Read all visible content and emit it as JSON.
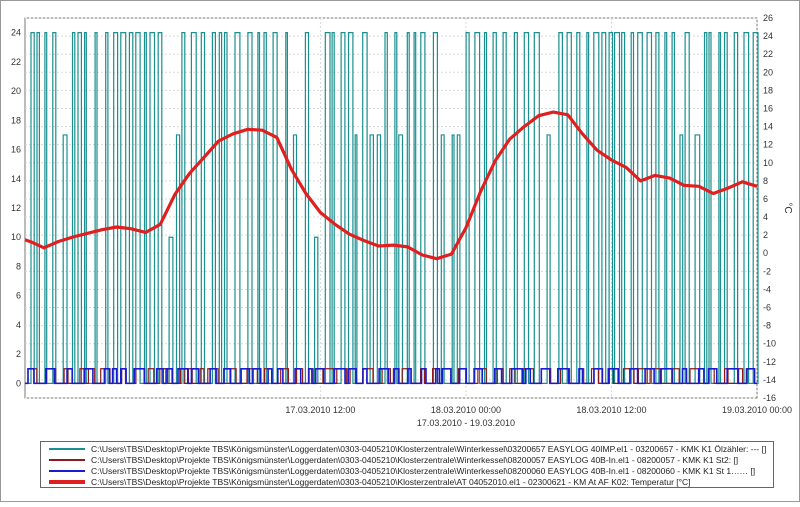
{
  "chart_data": {
    "type": "line",
    "title": "",
    "x_range": [
      "17.03.2010 00:00",
      "19.03.2010 00:00"
    ],
    "x_date_range_label": "17.03.2010 - 19.03.2010",
    "x_ticks": [
      {
        "x": 0.5,
        "label": "17.03.2010 12:00",
        "sub": ""
      },
      {
        "x": 1.0,
        "label": "18.03.2010 00:00",
        "sub": "17.03.2010 - 19.03.2010"
      },
      {
        "x": 1.5,
        "label": "18.03.2010 12:00",
        "sub": ""
      },
      {
        "x": 2.0,
        "label": "19.03.2010 00:00",
        "sub": ""
      }
    ],
    "x_domain": [
      -0.515,
      2.0
    ],
    "y_left": {
      "range": [
        -1,
        25
      ],
      "ticks": [
        "0",
        "2",
        "4",
        "6",
        "8",
        "10",
        "12",
        "14",
        "16",
        "18",
        "20",
        "22",
        "24"
      ]
    },
    "y_right": {
      "range": [
        -16,
        26
      ],
      "label": "°C",
      "ticks": [
        "-16",
        "-14",
        "-12",
        "-10",
        "-8",
        "-6",
        "-4",
        "-2",
        "0",
        "2",
        "4",
        "6",
        "8",
        "10",
        "12",
        "14",
        "16",
        "18",
        "20",
        "22",
        "24",
        "26"
      ]
    },
    "grid": true,
    "legend_position": "bottom",
    "series": [
      {
        "name": "C:\\Users\\TBS\\Desktop\\Projekte TBS\\Königsmünster\\Loggerdaten\\0303-0405210\\Klosterzentrale\\Winterkessel\\03200657 EASYLOG 40IMP.el1 - 03200657 - KMK K1 Ölzähler: --- []",
        "color": "#1a8f8f",
        "axis": "left",
        "values": "pulse train between 0 and 24"
      },
      {
        "name": "C:\\Users\\TBS\\Desktop\\Projekte TBS\\Königsmünster\\Loggerdaten\\0303-0405210\\Klosterzentrale\\Winterkessel\\08200057 EASYLOG 40B-In.el1 - 08200057 - KMK K1 St2:   []",
        "color": "#8b1a1a",
        "axis": "left",
        "values": "pulse train between 0 and 1"
      },
      {
        "name": "C:\\Users\\TBS\\Desktop\\Projekte TBS\\Königsmünster\\Loggerdaten\\0303-0405210\\Klosterzentrale\\Winterkessel\\08200060 EASYLOG 40B-In.el1 - 08200060 - KMK K1 St 1……  []",
        "color": "#1a1ad0",
        "axis": "left",
        "values": "pulse train between 0 and 1"
      },
      {
        "name": "C:\\Users\\TBS\\Desktop\\Projekte TBS\\Königsmünster\\Loggerdaten\\0303-0405210\\Klosterzentrale\\AT 04052010.el1 - 02300621 - KM At AF K02: Temperatur [°C]",
        "color": "#e02020",
        "axis": "right",
        "x": [
          -0.515,
          -0.49,
          -0.45,
          -0.4,
          -0.35,
          -0.3,
          -0.25,
          -0.2,
          -0.15,
          -0.1,
          -0.05,
          0.0,
          0.05,
          0.1,
          0.15,
          0.2,
          0.25,
          0.3,
          0.35,
          0.4,
          0.45,
          0.5,
          0.55,
          0.6,
          0.65,
          0.7,
          0.75,
          0.8,
          0.85,
          0.9,
          0.95,
          1.0,
          1.05,
          1.1,
          1.15,
          1.2,
          1.25,
          1.3,
          1.35,
          1.4,
          1.45,
          1.5,
          1.55,
          1.6,
          1.65,
          1.7,
          1.75,
          1.8,
          1.85,
          1.9,
          1.95,
          2.0
        ],
        "y": [
          1.5,
          1.2,
          0.6,
          1.3,
          1.8,
          2.2,
          2.6,
          2.9,
          2.7,
          2.3,
          3.2,
          6.5,
          8.8,
          10.6,
          12.4,
          13.2,
          13.7,
          13.6,
          12.8,
          9.3,
          6.6,
          4.5,
          3.2,
          2.1,
          1.4,
          0.8,
          0.9,
          0.7,
          -0.2,
          -0.6,
          -0.1,
          2.8,
          6.8,
          10.2,
          12.6,
          14.0,
          15.2,
          15.6,
          15.3,
          13.2,
          11.4,
          10.3,
          9.5,
          8.0,
          8.6,
          8.3,
          7.5,
          7.4,
          6.6,
          7.2,
          7.9,
          7.4
        ]
      }
    ]
  }
}
